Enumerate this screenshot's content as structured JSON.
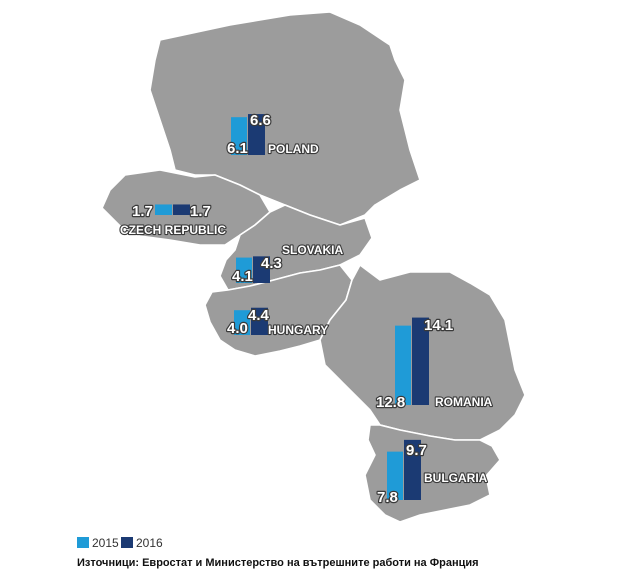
{
  "countries": [
    {
      "name": "POLAND",
      "v2015": 6.1,
      "v2016": 6.6
    },
    {
      "name": "CZECH REPUBLIC",
      "v2015": 1.7,
      "v2016": 1.7
    },
    {
      "name": "SLOVAKIA",
      "v2015": 4.1,
      "v2016": 4.3
    },
    {
      "name": "HUNGARY",
      "v2015": 4.0,
      "v2016": 4.4
    },
    {
      "name": "ROMANIA",
      "v2015": 12.8,
      "v2016": 14.1
    },
    {
      "name": "BULGARIA",
      "v2015": 7.8,
      "v2016": 9.7
    }
  ],
  "legend": {
    "items": [
      {
        "label": "2015",
        "color": "#1f9bd7"
      },
      {
        "label": "2016",
        "color": "#1b3a73"
      }
    ]
  },
  "source": "Източници: Евростат и Министерство на вътрешните работи на Франция",
  "map_fill": "#9c9c9c"
}
